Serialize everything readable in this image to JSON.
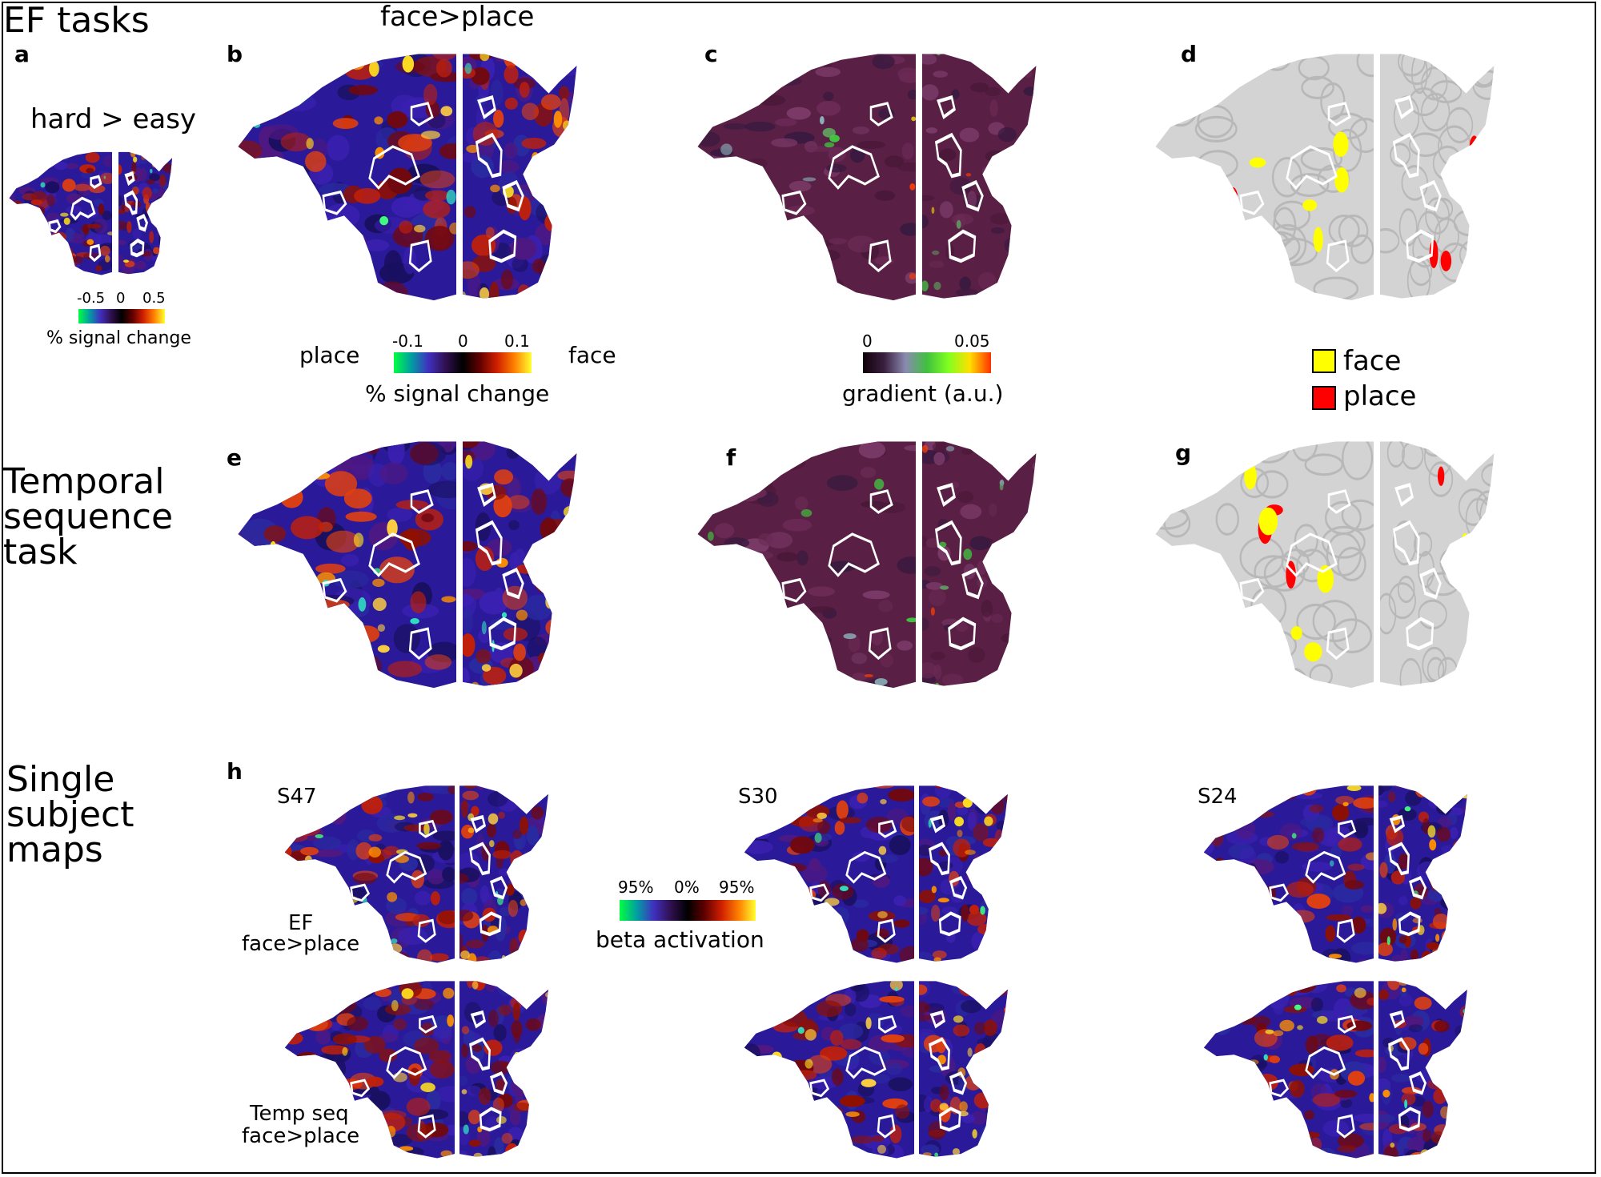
{
  "figure": {
    "row_titles": [
      "EF tasks",
      "Temporal sequence task",
      "Single subject maps"
    ],
    "panel_letters": [
      "a",
      "b",
      "c",
      "d",
      "e",
      "f",
      "g",
      "h"
    ],
    "panel_a": {
      "title": "hard > easy",
      "colorbar": {
        "ticks": [
          "-0.5",
          "0",
          "0.5"
        ],
        "label": "% signal change"
      }
    },
    "panel_b": {
      "title": "face>place",
      "left_label": "place",
      "right_label": "face",
      "colorbar": {
        "ticks": [
          "-0.1",
          "0",
          "0.1"
        ],
        "label": "% signal change"
      }
    },
    "panel_c": {
      "colorbar": {
        "ticks": [
          "0",
          "0.05"
        ],
        "label": "gradient (a.u.)"
      }
    },
    "panel_d": {
      "legend": [
        {
          "label": "face",
          "color": "#ffff00"
        },
        {
          "label": "place",
          "color": "#ff0000"
        }
      ]
    },
    "panel_h": {
      "subjects": [
        "S47",
        "S30",
        "S24"
      ],
      "row_labels": [
        {
          "line1": "EF",
          "line2": "face>place"
        },
        {
          "line1": "Temp seq",
          "line2": "face>place"
        }
      ],
      "colorbar": {
        "ticks": [
          "95%",
          "0%",
          "95%"
        ],
        "label": "beta activation"
      }
    }
  },
  "colors": {
    "map_blue": "#2a1a9a",
    "map_red": "#c0200a",
    "map_yellow": "#ffe020",
    "gradient_bg": "#5a1f45",
    "parcel_gray": "#d3d3d3",
    "roi_outline": "#ffffff"
  }
}
